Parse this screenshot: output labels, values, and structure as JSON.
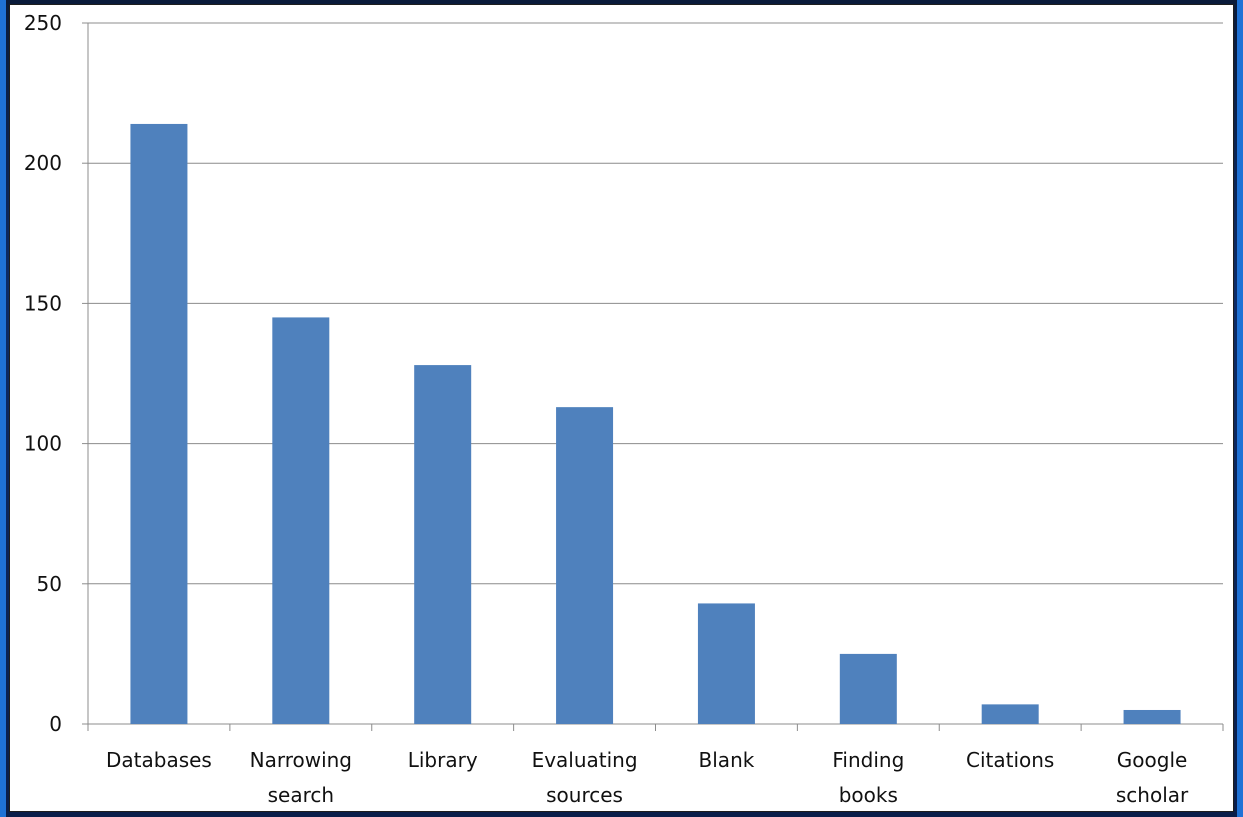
{
  "chart_data": {
    "type": "bar",
    "title": "",
    "xlabel": "",
    "ylabel": "",
    "ylim": [
      0,
      250
    ],
    "yticks": [
      0,
      50,
      100,
      150,
      200,
      250
    ],
    "grid": true,
    "legend": "none",
    "bar_color": "#4F81BD",
    "categories": [
      [
        "Databases"
      ],
      [
        "Narrowing",
        "search"
      ],
      [
        "Library"
      ],
      [
        "Evaluating",
        "sources"
      ],
      [
        "Blank"
      ],
      [
        "Finding",
        "books"
      ],
      [
        "Citations"
      ],
      [
        "Google",
        "scholar"
      ]
    ],
    "values": [
      214,
      145,
      128,
      113,
      43,
      25,
      7,
      5
    ]
  }
}
